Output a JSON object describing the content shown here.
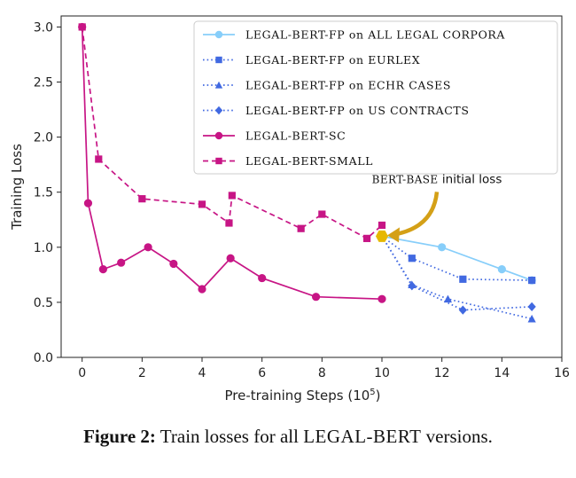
{
  "chart_data": {
    "type": "line",
    "xlabel": "Pre-training Steps (10",
    "xlabel_sup": "5",
    "xlabel_end": ")",
    "ylabel": "Training Loss",
    "xlim": [
      -0.7,
      16
    ],
    "ylim": [
      0,
      3.1
    ],
    "xticks": [
      0,
      2,
      4,
      6,
      8,
      10,
      12,
      14,
      16
    ],
    "yticks": [
      0.0,
      0.5,
      1.0,
      1.5,
      2.0,
      2.5,
      3.0
    ],
    "xtick_labels": [
      "0",
      "2",
      "4",
      "6",
      "8",
      "10",
      "12",
      "14",
      "16"
    ],
    "ytick_labels": [
      "0.0",
      "0.5",
      "1.0",
      "1.5",
      "2.0",
      "2.5",
      "3.0"
    ],
    "legend_position": "top-right",
    "grid": false,
    "series": [
      {
        "name": "LEGAL-BERT-FP on ALL LEGAL CORPORA",
        "color": "#87cefa",
        "dash": "solid",
        "marker": "circle",
        "x": [
          10,
          12,
          14,
          15
        ],
        "y": [
          1.1,
          1.0,
          0.8,
          0.7
        ]
      },
      {
        "name": "LEGAL-BERT-FP on EURLEX",
        "color": "#4169e1",
        "dash": "dotted",
        "marker": "square",
        "x": [
          10,
          11,
          12.7,
          15
        ],
        "y": [
          1.1,
          0.9,
          0.71,
          0.7
        ]
      },
      {
        "name": "LEGAL-BERT-FP on ECHR CASES",
        "color": "#4169e1",
        "dash": "dotted",
        "marker": "triangle",
        "x": [
          10,
          11,
          12.2,
          15
        ],
        "y": [
          1.1,
          0.66,
          0.53,
          0.35
        ]
      },
      {
        "name": "LEGAL-BERT-FP on US CONTRACTS",
        "color": "#4169e1",
        "dash": "dotted",
        "marker": "diamond",
        "x": [
          10,
          11,
          12.7,
          15
        ],
        "y": [
          1.1,
          0.65,
          0.43,
          0.46
        ]
      },
      {
        "name": "LEGAL-BERT-SC",
        "color": "#c71585",
        "dash": "solid",
        "marker": "circle",
        "x": [
          0,
          0.2,
          0.7,
          1.3,
          2.2,
          3.05,
          4,
          4.95,
          6,
          7.8,
          10
        ],
        "y": [
          3.0,
          1.4,
          0.8,
          0.86,
          1.0,
          0.85,
          0.62,
          0.9,
          0.72,
          0.55,
          0.53
        ]
      },
      {
        "name": "LEGAL-BERT-SMALL",
        "color": "#c71585",
        "dash": "dashed",
        "marker": "square",
        "x": [
          0,
          0.55,
          2.0,
          4.0,
          4.9,
          5.0,
          7.3,
          8.0,
          9.5,
          10
        ],
        "y": [
          3.0,
          1.8,
          1.44,
          1.39,
          1.22,
          1.47,
          1.17,
          1.3,
          1.08,
          1.2
        ]
      }
    ],
    "annotation": {
      "text_prefix": "BERT-BASE",
      "text_suffix": " initial loss",
      "point": [
        10,
        1.1
      ],
      "point_color": "#e6b800",
      "arrow_color": "#d4a017"
    }
  },
  "caption": {
    "lead": "Figure 2:",
    "text_before": " Train losses for all ",
    "text_sc": "LEGAL-BERT",
    "text_after": " versions."
  }
}
